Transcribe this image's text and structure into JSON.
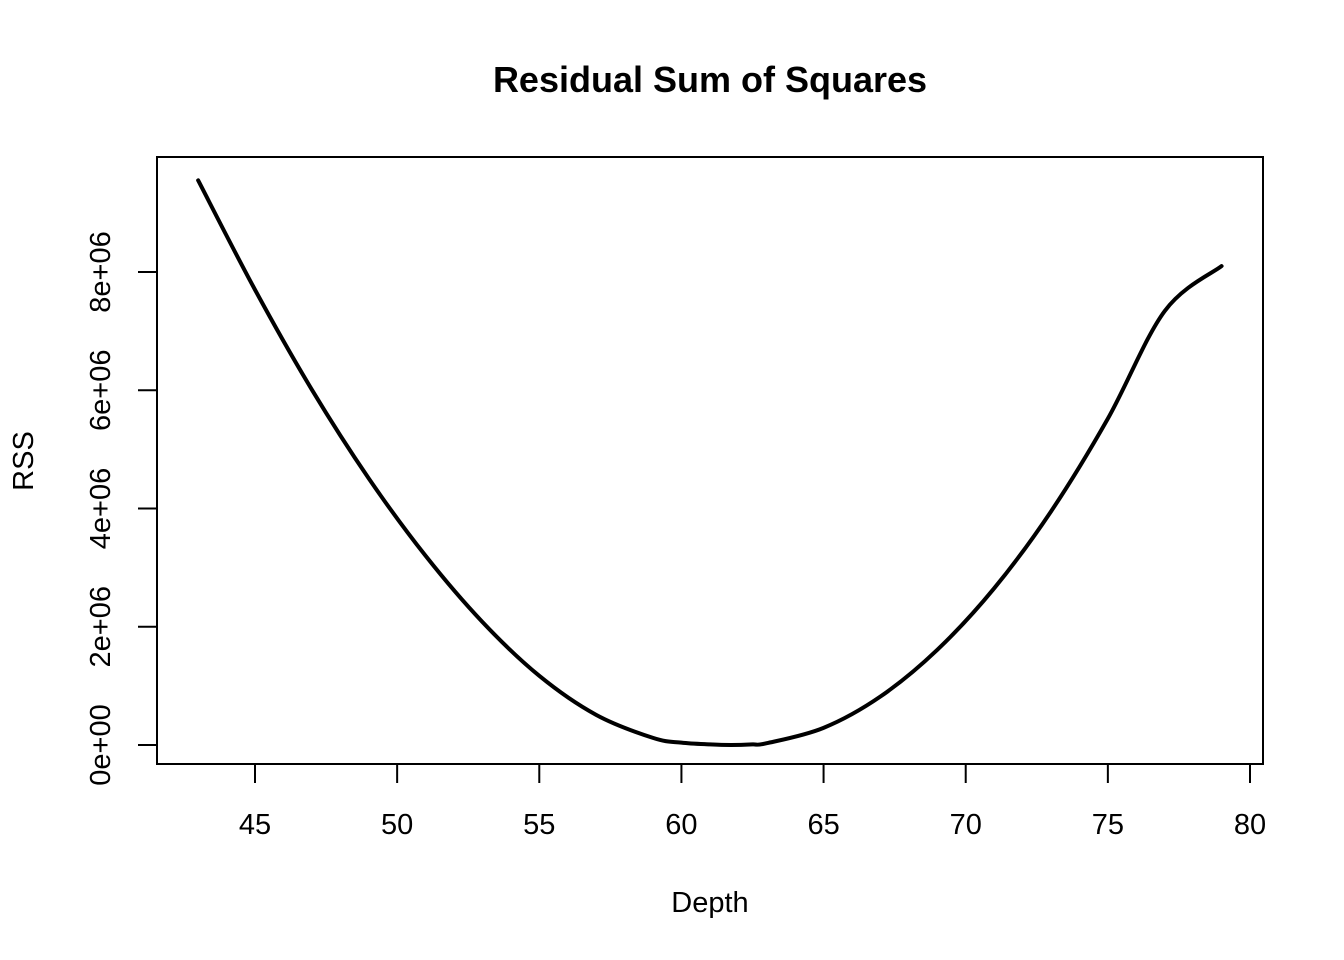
{
  "chart_data": {
    "type": "line",
    "title": "Residual Sum of Squares",
    "xlabel": "Depth",
    "ylabel": "RSS",
    "xlim": [
      43,
      79
    ],
    "ylim": [
      0,
      9600000
    ],
    "x_ticks": [
      45,
      50,
      55,
      60,
      65,
      70,
      75,
      80
    ],
    "x_tick_labels": [
      "45",
      "50",
      "55",
      "60",
      "65",
      "70",
      "75",
      "80"
    ],
    "y_ticks": [
      0,
      2000000,
      4000000,
      6000000,
      8000000
    ],
    "y_tick_labels": [
      "0e+00",
      "2e+06",
      "4e+06",
      "6e+06",
      "8e+06"
    ],
    "grid": false,
    "legend": "none",
    "line_color": "#000000",
    "series": [
      {
        "x": [
          43,
          45,
          47,
          49,
          51,
          53,
          55,
          57,
          59,
          60,
          61,
          61.75,
          62.5,
          63,
          65,
          67,
          69,
          71,
          73,
          75,
          77,
          79
        ],
        "values": [
          9550000,
          7700000,
          6010000,
          4510000,
          3200000,
          2080000,
          1170000,
          510000,
          120000,
          40000,
          10000,
          0,
          10000,
          30000,
          290000,
          820000,
          1610000,
          2650000,
          3950000,
          5520000,
          7340000,
          8100000
        ]
      }
    ]
  }
}
